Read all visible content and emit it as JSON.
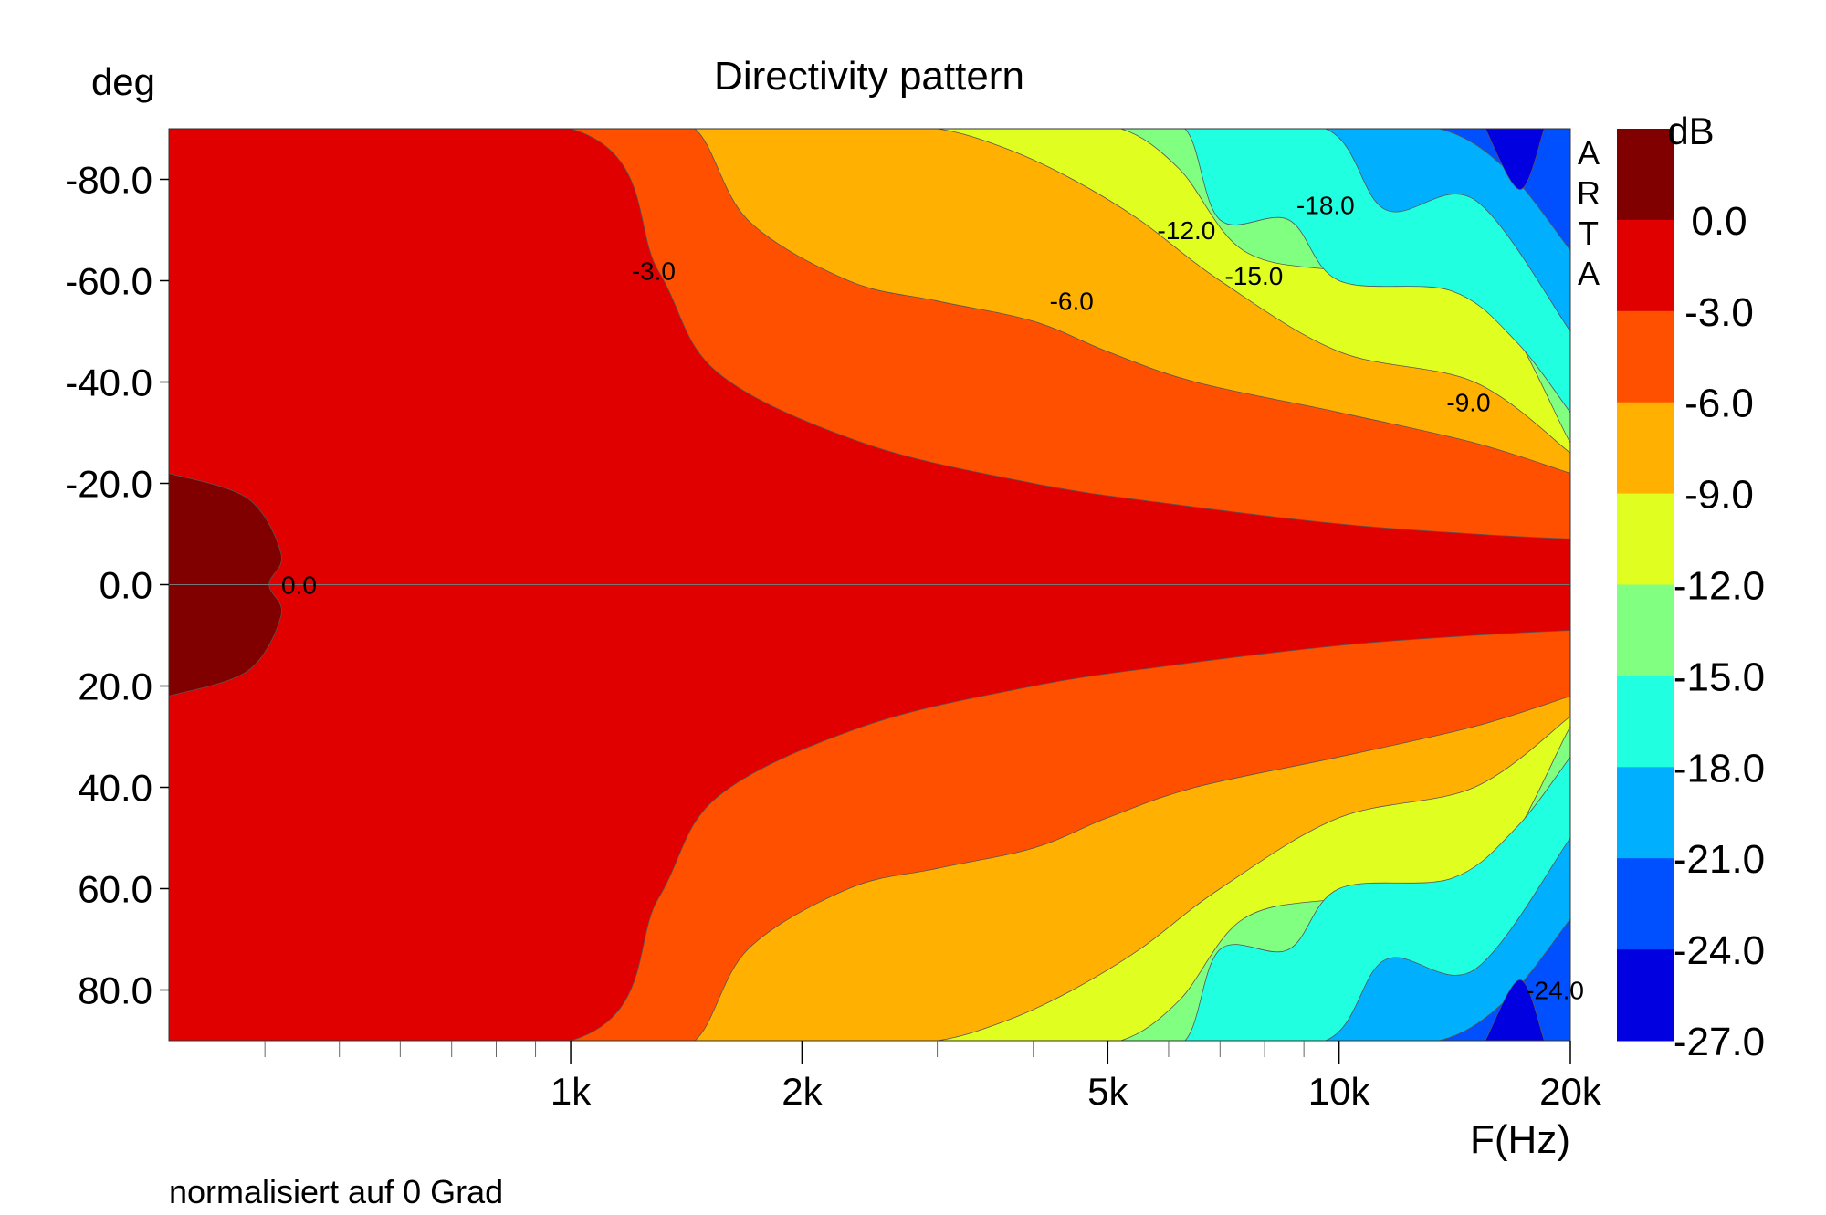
{
  "chart_data": {
    "type": "heatmap",
    "subtype": "filled-contour",
    "title": "Directivity pattern",
    "ylabel": "deg",
    "xlabel": "F(Hz)",
    "footnote": "normalisiert auf 0 Grad",
    "watermark": "ARTA",
    "xscale": "log",
    "xlim": [
      300,
      20000
    ],
    "ylim": [
      -90,
      90
    ],
    "y_inverted": true,
    "x_ticks": [
      {
        "value": 1000,
        "label": "1k"
      },
      {
        "value": 2000,
        "label": "2k"
      },
      {
        "value": 5000,
        "label": "5k"
      },
      {
        "value": 10000,
        "label": "10k"
      },
      {
        "value": 20000,
        "label": "20k"
      }
    ],
    "x_minor_ticks": [
      400,
      500,
      600,
      700,
      800,
      900,
      3000,
      4000,
      6000,
      7000,
      8000,
      9000
    ],
    "y_ticks": [
      {
        "value": -80,
        "label": "-80.0"
      },
      {
        "value": -60,
        "label": "-60.0"
      },
      {
        "value": -40,
        "label": "-40.0"
      },
      {
        "value": -20,
        "label": "-20.0"
      },
      {
        "value": 0,
        "label": "0.0"
      },
      {
        "value": 20,
        "label": "20.0"
      },
      {
        "value": 40,
        "label": "40.0"
      },
      {
        "value": 60,
        "label": "60.0"
      },
      {
        "value": 80,
        "label": "80.0"
      }
    ],
    "colorbar": {
      "unit": "dB",
      "levels": [
        {
          "label": "0.0",
          "color": "#800000"
        },
        {
          "label": "-3.0",
          "color": "#e00000"
        },
        {
          "label": "-6.0",
          "color": "#ff5000"
        },
        {
          "label": "-9.0",
          "color": "#ffb000"
        },
        {
          "label": "-12.0",
          "color": "#e0ff20"
        },
        {
          "label": "-15.0",
          "color": "#80ff80"
        },
        {
          "label": "-18.0",
          "color": "#20ffe0"
        },
        {
          "label": "-21.0",
          "color": "#00b0ff"
        },
        {
          "label": "-24.0",
          "color": "#0050ff"
        },
        {
          "label": "-27.0",
          "color": "#0000e0"
        }
      ]
    },
    "series": [
      {
        "level": -3,
        "x": [
          300,
          1000,
          1300,
          1550,
          2400,
          4000,
          6000,
          10000,
          15000,
          20000
        ],
        "y": [
          90,
          90,
          62,
          42,
          28,
          20,
          16,
          12,
          10,
          9
        ]
      },
      {
        "level": -6,
        "x": [
          1200,
          1450,
          1700,
          2300,
          3000,
          4000,
          5000,
          6500,
          10000,
          15000,
          20000
        ],
        "y": [
          90,
          90,
          72,
          60,
          56,
          52,
          46,
          40,
          34,
          28,
          22
        ]
      },
      {
        "level": -9,
        "x": [
          2400,
          3000,
          3700,
          4500,
          5500,
          7000,
          10000,
          15000,
          20000
        ],
        "y": [
          90,
          90,
          86,
          80,
          72,
          60,
          46,
          40,
          26
        ]
      },
      {
        "level": -12,
        "x": [
          4200,
          5200,
          6200,
          7500,
          10000,
          15000,
          20000
        ],
        "y": [
          90,
          90,
          82,
          66,
          62,
          60,
          28
        ]
      },
      {
        "level": -15,
        "x": [
          5300,
          6300,
          7000,
          8600,
          10000,
          14000,
          17000,
          20000
        ],
        "y": [
          90,
          90,
          72,
          72,
          60,
          58,
          48,
          34
        ]
      },
      {
        "level": -18,
        "x": [
          6300,
          9600,
          11500,
          15000,
          20000
        ],
        "y": [
          90,
          90,
          74,
          76,
          50
        ]
      },
      {
        "level": -21,
        "x": [
          10200,
          13500,
          16500,
          20000
        ],
        "y": [
          90,
          90,
          82,
          66
        ]
      },
      {
        "level": -24,
        "x": [
          15500,
          17200,
          18500
        ],
        "y": [
          90,
          78,
          90
        ]
      }
    ],
    "contour_labels": [
      {
        "text": "-3.0",
        "x": 1200,
        "y": -62
      },
      {
        "text": "-6.0",
        "x": 4200,
        "y": -56
      },
      {
        "text": "-9.0",
        "x": 13800,
        "y": -36
      },
      {
        "text": "-12.0",
        "x": 5800,
        "y": -70
      },
      {
        "text": "-15.0",
        "x": 7100,
        "y": -61
      },
      {
        "text": "-18.0",
        "x": 8800,
        "y": -75
      },
      {
        "text": "-24.0",
        "x": 17500,
        "y": 80
      },
      {
        "text": "0.0",
        "x": 420,
        "y": 0
      }
    ]
  }
}
